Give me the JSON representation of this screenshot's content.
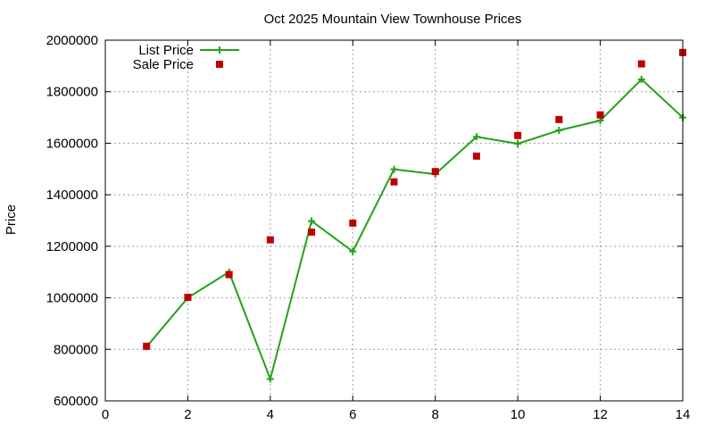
{
  "chart_data": {
    "type": "line",
    "title": "Oct 2025 Mountain View Townhouse Prices",
    "xlabel": "",
    "ylabel": "Price",
    "xlim": [
      0,
      14
    ],
    "ylim": [
      600000,
      2000000
    ],
    "xticks": [
      0,
      2,
      4,
      6,
      8,
      10,
      12,
      14
    ],
    "yticks": [
      600000,
      800000,
      1000000,
      1200000,
      1400000,
      1600000,
      1800000,
      2000000
    ],
    "grid": true,
    "legend_position": "top-left",
    "series": [
      {
        "name": "List Price",
        "style": "line-plus",
        "color": "#22a318",
        "x": [
          1,
          2,
          3,
          4,
          5,
          6,
          7,
          8,
          9,
          10,
          11,
          12,
          13,
          14
        ],
        "y": [
          810000,
          1000000,
          1100000,
          685000,
          1298000,
          1180000,
          1499000,
          1480000,
          1625000,
          1598000,
          1650000,
          1688000,
          1848000,
          1700000
        ]
      },
      {
        "name": "Sale Price",
        "style": "square-points",
        "color": "#c00000",
        "x": [
          1,
          2,
          3,
          4,
          5,
          6,
          7,
          8,
          9,
          10,
          11,
          12,
          13,
          14
        ],
        "y": [
          812000,
          1002000,
          1090000,
          1225000,
          1255000,
          1290000,
          1450000,
          1490000,
          1550000,
          1630000,
          1692000,
          1710000,
          1908000,
          1952000
        ]
      }
    ]
  }
}
